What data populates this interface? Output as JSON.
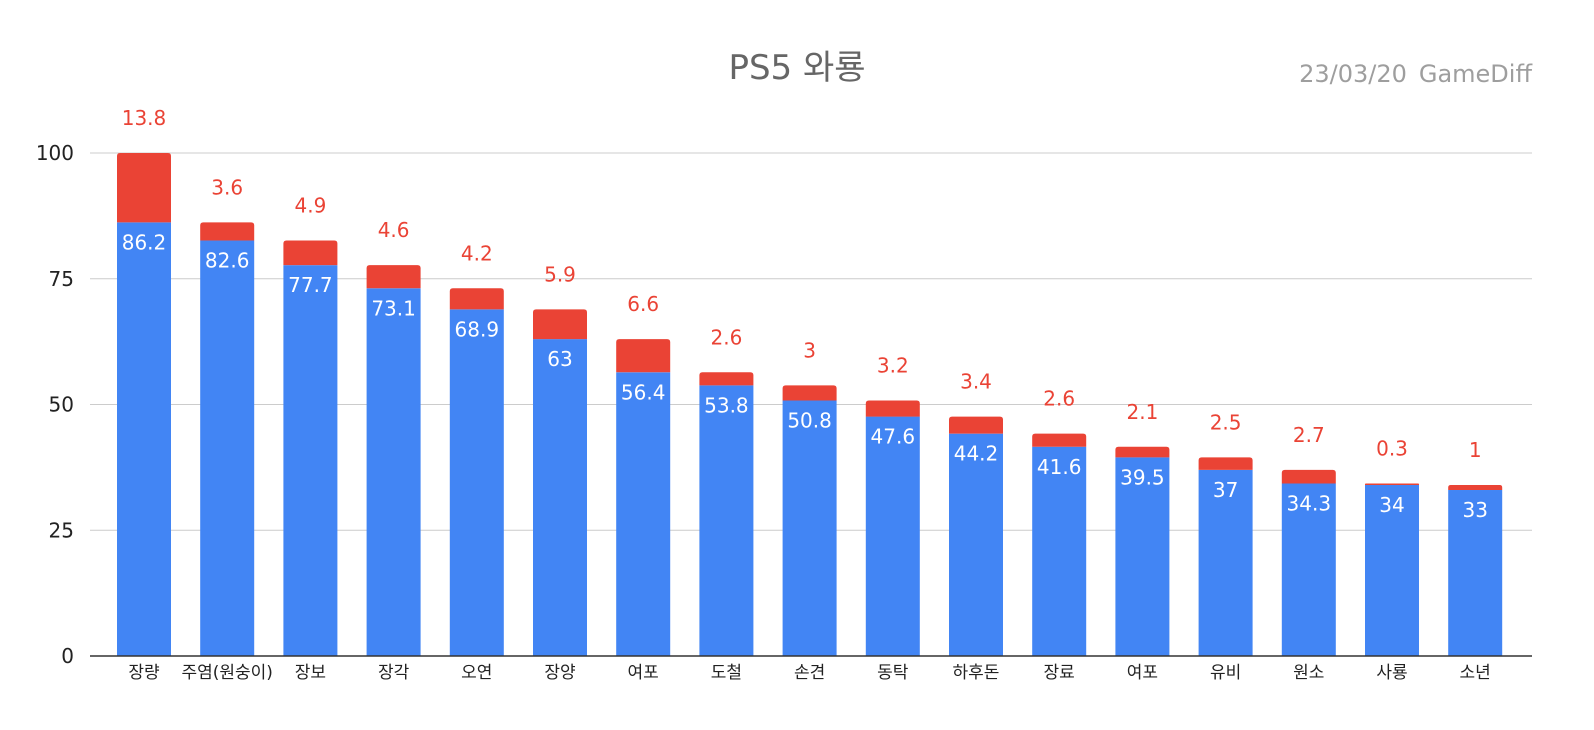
{
  "chart_data": {
    "type": "bar",
    "stacked": true,
    "title": "PS5 와룡",
    "date": "23/03/20",
    "source": "GameDiff",
    "categories": [
      "장량",
      "주염(원숭이)",
      "장보",
      "장각",
      "오연",
      "장양",
      "여포",
      "도철",
      "손견",
      "동탁",
      "하후돈",
      "장료",
      "여포",
      "유비",
      "원소",
      "사룡",
      "소년"
    ],
    "series": [
      {
        "name": "base",
        "color": "#4285f4",
        "label_color": "#ffffff",
        "values": [
          86.2,
          82.6,
          77.7,
          73.1,
          68.9,
          63,
          56.4,
          53.8,
          50.8,
          47.6,
          44.2,
          41.6,
          39.5,
          37,
          34.3,
          34,
          33
        ]
      },
      {
        "name": "extra",
        "color": "#ea4335",
        "label_color": "#ea4335",
        "values": [
          13.8,
          3.6,
          4.9,
          4.6,
          4.2,
          5.9,
          6.6,
          2.6,
          3,
          3.2,
          3.4,
          2.6,
          2.1,
          2.5,
          2.7,
          0.3,
          1
        ]
      }
    ],
    "ylim": [
      0,
      100
    ],
    "yticks": [
      "0",
      "25",
      "50",
      "75",
      "100"
    ],
    "grid": true,
    "xlabel": "",
    "ylabel": ""
  }
}
